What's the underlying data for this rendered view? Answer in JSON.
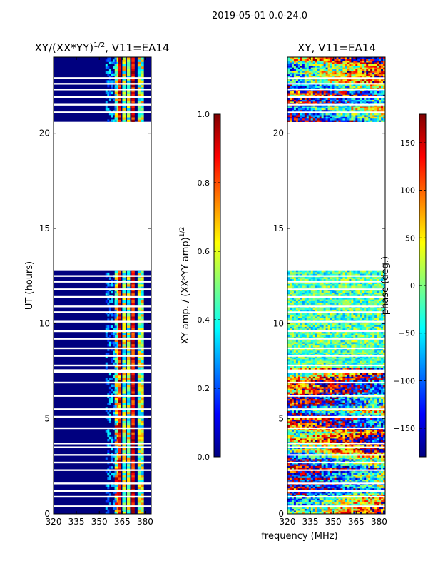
{
  "suptitle": "2019-05-01 0.0-24.0",
  "colors": {
    "jet": [
      "#00007f",
      "#0000ff",
      "#007fff",
      "#00ffff",
      "#7fff7f",
      "#ffff00",
      "#ff7f00",
      "#ff0000",
      "#7f0000"
    ]
  },
  "chart_data": [
    {
      "type": "heatmap",
      "title_main": "XY/(XX*YY)",
      "title_sup": "1/2",
      "title_rest": ", V11=EA14",
      "xlabel": "",
      "ylabel": "UT (hours)",
      "xlim": [
        320,
        384
      ],
      "ylim": [
        0,
        24
      ],
      "xticks": [
        320,
        335,
        350,
        365,
        380
      ],
      "yticks": [
        0,
        5,
        10,
        15,
        20
      ],
      "data_bands": [
        [
          0.0,
          7.4
        ],
        [
          7.6,
          12.8
        ],
        [
          20.6,
          24.0
        ]
      ],
      "gap_rows": [
        0.4,
        0.9,
        1.2,
        1.6,
        2.3,
        2.7,
        3.1,
        3.5,
        3.7,
        4.5,
        5.1,
        5.5,
        6.2,
        6.9,
        7.8,
        8.3,
        8.7,
        9.2,
        9.6,
        10.1,
        10.6,
        10.9,
        11.4,
        11.8,
        12.2,
        12.5,
        21.1,
        21.5,
        21.9,
        22.3,
        22.6,
        22.9
      ],
      "bright_channels_mhz": [
        361,
        363,
        366,
        369,
        372,
        376,
        378
      ],
      "colorbar": {
        "label": "XY amp. / (XX*YY amp)",
        "label_sup": "1/2",
        "range": [
          0.0,
          1.0
        ],
        "ticks": [
          "0.0",
          "0.2",
          "0.4",
          "0.6",
          "0.8",
          "1.0"
        ]
      }
    },
    {
      "type": "heatmap",
      "title": "XY, V11=EA14",
      "xlabel": "frequency (MHz)",
      "ylabel": "",
      "xlim": [
        320,
        384
      ],
      "ylim": [
        0,
        24
      ],
      "xticks": [
        320,
        335,
        350,
        365,
        380
      ],
      "yticks": [
        0,
        5,
        10,
        15,
        20
      ],
      "data_bands": [
        [
          0.0,
          7.4
        ],
        [
          7.6,
          12.8
        ],
        [
          20.6,
          24.0
        ]
      ],
      "colorbar": {
        "label": "phase (deg.)",
        "range": [
          -180,
          180
        ],
        "ticks": [
          "−150",
          "−100",
          "−50",
          "0",
          "50",
          "100",
          "150"
        ],
        "tick_values": [
          -150,
          -100,
          -50,
          0,
          50,
          100,
          150
        ]
      }
    }
  ]
}
